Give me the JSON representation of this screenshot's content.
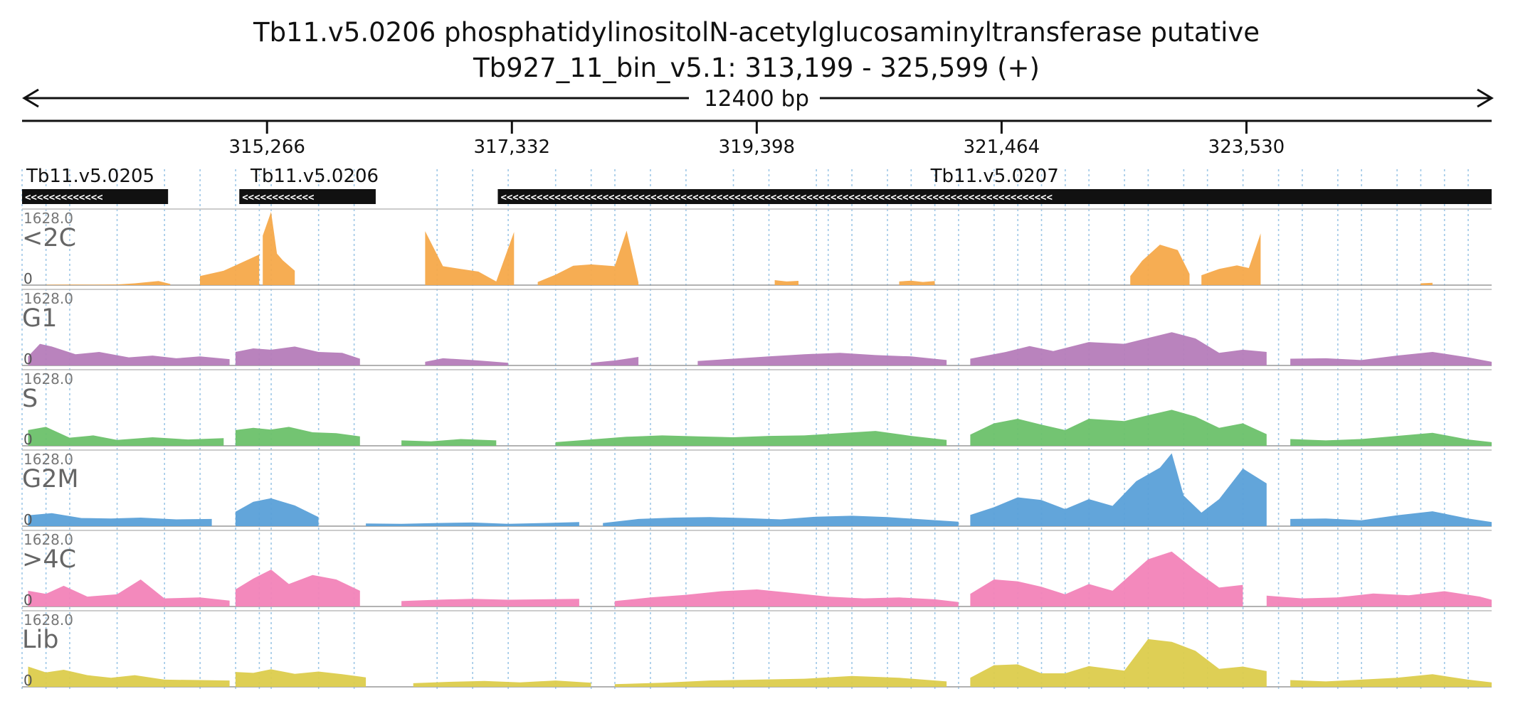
{
  "header": {
    "title_line1": "Tb11.v5.0206  phosphatidylinositolN-acetylglucosaminyltransferase  putative",
    "title_line2": "Tb927_11_bin_v5.1: 313,199 - 325,599 (+)",
    "span_label": "12400 bp"
  },
  "colors": {
    "<2C": "#f5a94a",
    "G1": "#b57cb9",
    "S": "#6cc16a",
    "G2M": "#5aa0d8",
    ">4C": "#f283b8",
    "Lib": "#dccc4c",
    "gene": "#111111",
    "gridline": "#9ec7e6"
  },
  "chart_data": {
    "type": "area",
    "title": "Tb11.v5.0206  phosphatidylinositolN-acetylglucosaminyltransferase  putative",
    "subtitle": "Tb927_11_bin_v5.1: 313,199 - 325,599 (+)",
    "chromosome": "Tb927_11_bin_v5.1",
    "x_range": [
      313199,
      325599
    ],
    "span": "12400 bp",
    "x_ticks": [
      315266,
      317332,
      319398,
      321464,
      323530
    ],
    "x_tick_labels": [
      "315,266",
      "317,332",
      "319,398",
      "321,464",
      "323,530"
    ],
    "gridlines": [
      313199,
      313401,
      313601,
      314001,
      314401,
      314701,
      315001,
      315201,
      315301,
      315701,
      316001,
      316701,
      317001,
      317301,
      317701,
      318001,
      318201,
      318501,
      318801,
      319201,
      319501,
      319901,
      320001,
      320201,
      320501,
      320701,
      320901,
      321101,
      321401,
      321601,
      321801,
      322001,
      322201,
      322501,
      322701,
      323001,
      323201,
      323501,
      323801,
      324001,
      324301,
      324501,
      324801,
      325001,
      325201,
      325401
    ],
    "genes": [
      {
        "name": "Tb11.v5.0205",
        "start": 313199,
        "end": 314431,
        "strand": "-"
      },
      {
        "name": "Tb11.v5.0206",
        "start": 315032,
        "end": 316183,
        "strand": "-"
      },
      {
        "name": "Tb11.v5.0207",
        "start": 317213,
        "end": 325599,
        "strand": "-"
      }
    ],
    "y_max": 1628.0,
    "y_min": 0,
    "y_max_label": "1628.0",
    "y_min_label": "0",
    "series": [
      {
        "name": "<2C",
        "segments": [
          {
            "x": [
              313400,
              313600,
              313800,
              314000,
              314150,
              314350,
              314450
            ],
            "y": [
              8,
              12,
              10,
              15,
              40,
              90,
              25
            ]
          },
          {
            "x": [
              314700,
              314900,
              315000,
              315100,
              315200
            ],
            "y": [
              200,
              320,
              440,
              560,
              680
            ]
          },
          {
            "x": [
              315230,
              315300,
              315350,
              315400,
              315500
            ],
            "y": [
              1100,
              1628,
              700,
              550,
              320
            ]
          },
          {
            "x": [
              316600,
              316750,
              316900,
              317050,
              317200,
              317350
            ],
            "y": [
              1200,
              420,
              360,
              300,
              80,
              1180
            ]
          },
          {
            "x": [
              317550,
              317700,
              317850,
              318000,
              318200,
              318300,
              318400
            ],
            "y": [
              70,
              230,
              430,
              460,
              420,
              1210,
              60
            ]
          },
          {
            "x": [
              319550,
              319650,
              319750
            ],
            "y": [
              110,
              80,
              95
            ]
          },
          {
            "x": [
              320600,
              320700,
              320800,
              320900
            ],
            "y": [
              80,
              100,
              70,
              90
            ]
          },
          {
            "x": [
              322550,
              322650,
              322800,
              322950,
              323050
            ],
            "y": [
              200,
              540,
              900,
              780,
              250
            ]
          },
          {
            "x": [
              323150,
              323300,
              323450,
              323550,
              323650
            ],
            "y": [
              220,
              360,
              440,
              380,
              1150
            ]
          },
          {
            "x": [
              325000,
              325100
            ],
            "y": [
              40,
              50
            ]
          }
        ]
      },
      {
        "name": "G1",
        "segments": [
          {
            "x": [
              313250,
              313350,
              313450,
              313650,
              313850,
              314100,
              314300,
              314500,
              314700,
              314950
            ],
            "y": [
              200,
              480,
              420,
              250,
              300,
              180,
              220,
              160,
              200,
              140
            ]
          },
          {
            "x": [
              315000,
              315150,
              315300,
              315500,
              315700,
              315900,
              316050
            ],
            "y": [
              300,
              380,
              350,
              420,
              300,
              280,
              150
            ]
          },
          {
            "x": [
              316600,
              316750,
              317000,
              317300
            ],
            "y": [
              80,
              160,
              120,
              60
            ]
          },
          {
            "x": [
              318000,
              318200,
              318400
            ],
            "y": [
              60,
              110,
              190
            ]
          },
          {
            "x": [
              318900,
              319200,
              319500,
              319800,
              320100,
              320400,
              320700,
              321000
            ],
            "y": [
              100,
              150,
              200,
              250,
              280,
              230,
              200,
              120
            ]
          },
          {
            "x": [
              321200,
              321500,
              321700,
              321900,
              322200,
              322500,
              322700,
              322900,
              323100,
              323300,
              323500,
              323700
            ],
            "y": [
              150,
              300,
              430,
              320,
              520,
              480,
              610,
              740,
              600,
              280,
              350,
              300
            ]
          },
          {
            "x": [
              323900,
              324200,
              324500,
              324800,
              325100,
              325400,
              325599
            ],
            "y": [
              150,
              160,
              120,
              220,
              300,
              180,
              80
            ]
          }
        ]
      },
      {
        "name": "S",
        "segments": [
          {
            "x": [
              313250,
              313400,
              313600,
              313800,
              314000,
              314300,
              314600,
              314900
            ],
            "y": [
              350,
              420,
              180,
              230,
              130,
              190,
              140,
              170
            ]
          },
          {
            "x": [
              315000,
              315150,
              315300,
              315450,
              315650,
              315850,
              316050
            ],
            "y": [
              350,
              400,
              360,
              420,
              300,
              280,
              210
            ]
          },
          {
            "x": [
              316400,
              316650,
              316900,
              317200
            ],
            "y": [
              120,
              100,
              150,
              120
            ]
          },
          {
            "x": [
              317700,
              318000,
              318300,
              318600,
              318900,
              319200,
              319500,
              319800,
              320100,
              320400,
              320700,
              321000
            ],
            "y": [
              80,
              140,
              200,
              230,
              210,
              190,
              220,
              230,
              280,
              330,
              220,
              130
            ]
          },
          {
            "x": [
              321200,
              321400,
              321600,
              321800,
              322000,
              322200,
              322500,
              322700,
              322900,
              323100,
              323300,
              323500,
              323700
            ],
            "y": [
              250,
              500,
              600,
              470,
              350,
              600,
              550,
              680,
              800,
              650,
              400,
              500,
              260
            ]
          },
          {
            "x": [
              323900,
              324200,
              324500,
              324800,
              325100,
              325400,
              325599
            ],
            "y": [
              150,
              120,
              150,
              220,
              290,
              140,
              80
            ]
          }
        ]
      },
      {
        "name": "G2M",
        "segments": [
          {
            "x": [
              313250,
              313450,
              313700,
              313950,
              314200,
              314500,
              314800
            ],
            "y": [
              240,
              290,
              180,
              170,
              190,
              150,
              160
            ]
          },
          {
            "x": [
              315000,
              315150,
              315300,
              315500,
              315700
            ],
            "y": [
              320,
              540,
              620,
              460,
              200
            ]
          },
          {
            "x": [
              316100,
              316400,
              316700,
              317000,
              317300,
              317600,
              317900
            ],
            "y": [
              60,
              50,
              70,
              80,
              50,
              70,
              90
            ]
          },
          {
            "x": [
              318100,
              318400,
              318700,
              319000,
              319300,
              319600,
              319900,
              320200,
              320500,
              320800,
              321100
            ],
            "y": [
              70,
              160,
              190,
              200,
              180,
              150,
              210,
              230,
              200,
              150,
              100
            ]
          },
          {
            "x": [
              321200,
              321400,
              321600,
              321800,
              322000,
              322200,
              322400,
              322600,
              322800,
              322900,
              323000,
              323150,
              323300,
              323500,
              323700
            ],
            "y": [
              250,
              420,
              640,
              580,
              380,
              600,
              450,
              1000,
              1300,
              1620,
              680,
              300,
              600,
              1280,
              950
            ]
          },
          {
            "x": [
              323900,
              324200,
              324500,
              324800,
              325100,
              325400,
              325599
            ],
            "y": [
              160,
              170,
              130,
              240,
              330,
              170,
              90
            ]
          }
        ]
      },
      {
        "name": ">4C",
        "segments": [
          {
            "x": [
              313250,
              313400,
              313550,
              313750,
              314000,
              314200,
              314400,
              314700,
              314950
            ],
            "y": [
              350,
              280,
              460,
              220,
              270,
              600,
              180,
              200,
              130
            ]
          },
          {
            "x": [
              315000,
              315150,
              315300,
              315450,
              315650,
              315850,
              316050
            ],
            "y": [
              380,
              620,
              820,
              500,
              700,
              600,
              350
            ]
          },
          {
            "x": [
              316400,
              316700,
              317000,
              317300,
              317600,
              317900
            ],
            "y": [
              120,
              150,
              170,
              150,
              160,
              170
            ]
          },
          {
            "x": [
              318200,
              318500,
              318800,
              319100,
              319400,
              319700,
              320000,
              320300,
              320600,
              320900,
              321100
            ],
            "y": [
              120,
              200,
              260,
              340,
              380,
              300,
              220,
              180,
              200,
              160,
              100
            ]
          },
          {
            "x": [
              321200,
              321400,
              321600,
              321800,
              322000,
              322200,
              322400,
              322700,
              322900,
              323100,
              323300,
              323500
            ],
            "y": [
              280,
              600,
              560,
              440,
              270,
              500,
              350,
              1050,
              1220,
              800,
              420,
              480
            ]
          },
          {
            "x": [
              323700,
              324000,
              324300,
              324600,
              324900,
              325200,
              325500,
              325599
            ],
            "y": [
              240,
              180,
              200,
              290,
              250,
              340,
              220,
              150
            ]
          }
        ]
      },
      {
        "name": "Lib",
        "segments": [
          {
            "x": [
              313250,
              313400,
              313550,
              313750,
              313950,
              314150,
              314400,
              314700,
              314950
            ],
            "y": [
              450,
              320,
              380,
              260,
              200,
              260,
              160,
              150,
              140
            ]
          },
          {
            "x": [
              315000,
              315150,
              315300,
              315500,
              315700,
              315900,
              316100
            ],
            "y": [
              330,
              310,
              390,
              290,
              340,
              280,
              210
            ]
          },
          {
            "x": [
              316500,
              316800,
              317100,
              317400,
              317700,
              318000
            ],
            "y": [
              80,
              110,
              130,
              100,
              140,
              90
            ]
          },
          {
            "x": [
              318200,
              318600,
              319000,
              319400,
              319800,
              320200,
              320600,
              321000
            ],
            "y": [
              60,
              90,
              140,
              160,
              180,
              240,
              200,
              120
            ]
          },
          {
            "x": [
              321200,
              321400,
              321600,
              321800,
              322000,
              322200,
              322500,
              322700,
              322900,
              323100,
              323300,
              323500,
              323700
            ],
            "y": [
              200,
              480,
              500,
              300,
              300,
              460,
              360,
              1060,
              1000,
              800,
              400,
              450,
              350
            ]
          },
          {
            "x": [
              323900,
              324200,
              324500,
              324800,
              325100,
              325400,
              325599
            ],
            "y": [
              150,
              120,
              160,
              200,
              280,
              160,
              100
            ]
          }
        ]
      }
    ]
  }
}
